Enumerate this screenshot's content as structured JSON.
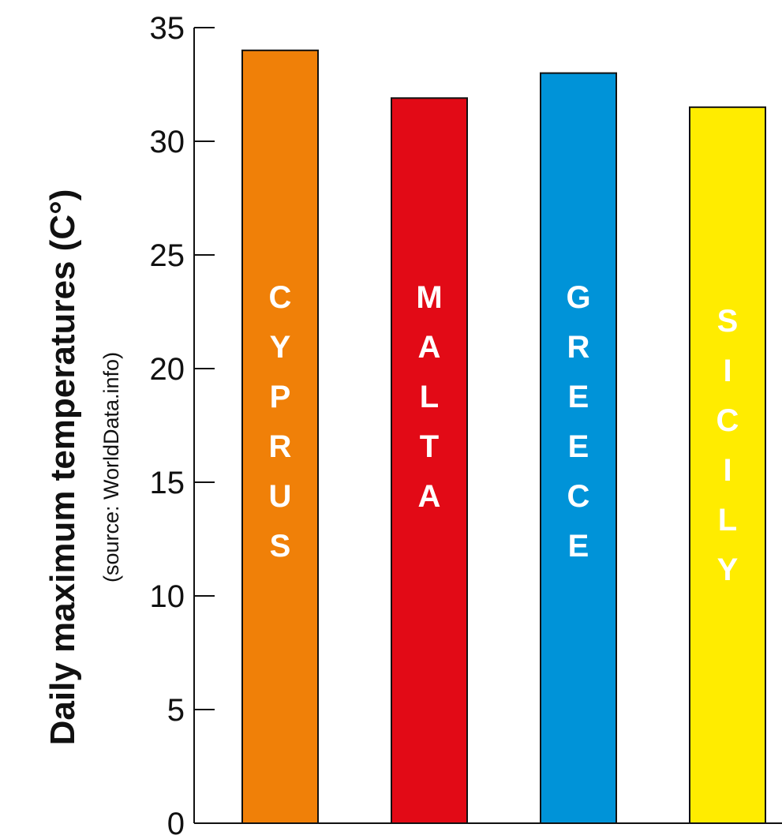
{
  "chart_data": {
    "type": "bar",
    "title": "",
    "ylabel": "Daily maximum temperatures (C°)",
    "ylabel_note": "(source: WorldData.info)",
    "xlabel": "",
    "categories": [
      "CYPRUS",
      "MALTA",
      "GREECE",
      "SICILY"
    ],
    "values": [
      34.0,
      31.9,
      33.0,
      31.5
    ],
    "colors": [
      "#f08008",
      "#e20a16",
      "#0093d8",
      "#ffec00"
    ],
    "ylim": [
      0,
      35
    ],
    "yticks": [
      0,
      5,
      10,
      15,
      20,
      25,
      30,
      35
    ],
    "grid": false,
    "legend": "none"
  }
}
